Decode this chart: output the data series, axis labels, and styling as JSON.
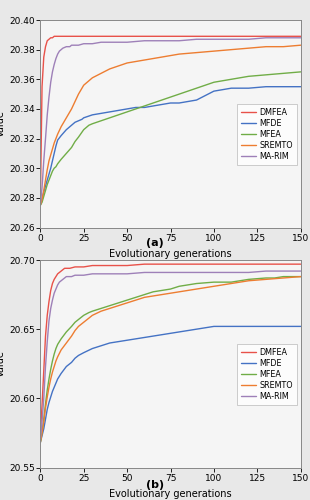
{
  "subplot_a": {
    "caption": "(a)",
    "xlabel": "Evolutionary generations",
    "ylabel": "Value",
    "xlim": [
      0,
      150
    ],
    "ylim": [
      20.26,
      20.4
    ],
    "yticks": [
      20.26,
      20.28,
      20.3,
      20.32,
      20.34,
      20.36,
      20.38,
      20.4
    ],
    "xticks": [
      0,
      25,
      50,
      75,
      100,
      125,
      150
    ],
    "curves": {
      "DMFEA": {
        "color": "#e8524a",
        "x": [
          0,
          1,
          2,
          3,
          4,
          5,
          6,
          7,
          8,
          9,
          10,
          11,
          12,
          13,
          14,
          15,
          20,
          25,
          30,
          40,
          50,
          60,
          70,
          80,
          90,
          100,
          110,
          120,
          130,
          140,
          150
        ],
        "y": [
          20.275,
          20.355,
          20.375,
          20.382,
          20.386,
          20.387,
          20.388,
          20.388,
          20.389,
          20.389,
          20.389,
          20.389,
          20.389,
          20.389,
          20.389,
          20.389,
          20.389,
          20.389,
          20.389,
          20.389,
          20.389,
          20.389,
          20.389,
          20.389,
          20.389,
          20.389,
          20.389,
          20.389,
          20.389,
          20.389,
          20.389
        ]
      },
      "MFDE": {
        "color": "#4472c4",
        "x": [
          0,
          1,
          2,
          3,
          4,
          5,
          6,
          7,
          8,
          9,
          10,
          12,
          15,
          18,
          20,
          22,
          24,
          25,
          30,
          35,
          40,
          45,
          50,
          55,
          60,
          65,
          70,
          75,
          80,
          90,
          100,
          105,
          110,
          120,
          130,
          140,
          150
        ],
        "y": [
          20.275,
          20.279,
          20.284,
          20.288,
          20.292,
          20.296,
          20.3,
          20.305,
          20.31,
          20.315,
          20.319,
          20.322,
          20.326,
          20.329,
          20.331,
          20.332,
          20.333,
          20.334,
          20.336,
          20.337,
          20.338,
          20.339,
          20.34,
          20.341,
          20.341,
          20.342,
          20.343,
          20.344,
          20.344,
          20.346,
          20.352,
          20.353,
          20.354,
          20.354,
          20.355,
          20.355,
          20.355
        ]
      },
      "MFEA": {
        "color": "#70ad47",
        "x": [
          0,
          1,
          2,
          3,
          4,
          5,
          6,
          7,
          8,
          9,
          10,
          12,
          15,
          18,
          20,
          22,
          25,
          28,
          30,
          35,
          40,
          45,
          50,
          55,
          60,
          65,
          70,
          75,
          80,
          90,
          100,
          110,
          120,
          130,
          140,
          150
        ],
        "y": [
          20.275,
          20.277,
          20.281,
          20.285,
          20.289,
          20.292,
          20.295,
          20.298,
          20.3,
          20.301,
          20.303,
          20.306,
          20.31,
          20.314,
          20.318,
          20.321,
          20.326,
          20.329,
          20.33,
          20.332,
          20.334,
          20.336,
          20.338,
          20.34,
          20.342,
          20.344,
          20.346,
          20.348,
          20.35,
          20.354,
          20.358,
          20.36,
          20.362,
          20.363,
          20.364,
          20.365
        ]
      },
      "SREMTO": {
        "color": "#ed7d31",
        "x": [
          0,
          1,
          2,
          3,
          4,
          5,
          6,
          7,
          8,
          9,
          10,
          12,
          15,
          18,
          20,
          22,
          25,
          28,
          30,
          35,
          40,
          45,
          50,
          55,
          60,
          65,
          70,
          75,
          80,
          90,
          100,
          110,
          120,
          130,
          140,
          150
        ],
        "y": [
          20.275,
          20.279,
          20.285,
          20.292,
          20.299,
          20.305,
          20.309,
          20.313,
          20.317,
          20.32,
          20.323,
          20.328,
          20.334,
          20.34,
          20.345,
          20.35,
          20.356,
          20.359,
          20.361,
          20.364,
          20.367,
          20.369,
          20.371,
          20.372,
          20.373,
          20.374,
          20.375,
          20.376,
          20.377,
          20.378,
          20.379,
          20.38,
          20.381,
          20.382,
          20.382,
          20.383
        ]
      },
      "MA-RIM": {
        "color": "#9e80b8",
        "x": [
          0,
          1,
          2,
          3,
          4,
          5,
          6,
          7,
          8,
          9,
          10,
          11,
          12,
          13,
          15,
          17,
          18,
          20,
          22,
          25,
          30,
          35,
          40,
          50,
          60,
          70,
          80,
          90,
          100,
          110,
          120,
          130,
          140,
          150
        ],
        "y": [
          20.275,
          20.287,
          20.305,
          20.32,
          20.336,
          20.348,
          20.358,
          20.365,
          20.37,
          20.374,
          20.377,
          20.379,
          20.38,
          20.381,
          20.382,
          20.382,
          20.383,
          20.383,
          20.383,
          20.384,
          20.384,
          20.385,
          20.385,
          20.385,
          20.386,
          20.386,
          20.386,
          20.387,
          20.387,
          20.387,
          20.387,
          20.388,
          20.388,
          20.388
        ]
      }
    }
  },
  "subplot_b": {
    "caption": "(b)",
    "xlabel": "Evolutionary generations",
    "ylabel": "Value",
    "xlim": [
      0,
      150
    ],
    "ylim": [
      20.55,
      20.7
    ],
    "yticks": [
      20.55,
      20.6,
      20.65,
      20.7
    ],
    "xticks": [
      0,
      25,
      50,
      75,
      100,
      125,
      150
    ],
    "curves": {
      "DMFEA": {
        "color": "#e8524a",
        "x": [
          0,
          1,
          2,
          3,
          4,
          5,
          6,
          7,
          8,
          9,
          10,
          11,
          12,
          13,
          14,
          15,
          17,
          20,
          25,
          30,
          40,
          50,
          60,
          70,
          80,
          90,
          100,
          110,
          120,
          130,
          140,
          150
        ],
        "y": [
          20.573,
          20.595,
          20.62,
          20.645,
          20.66,
          20.67,
          20.678,
          20.683,
          20.686,
          20.688,
          20.69,
          20.691,
          20.692,
          20.693,
          20.694,
          20.694,
          20.694,
          20.695,
          20.695,
          20.696,
          20.696,
          20.696,
          20.697,
          20.697,
          20.697,
          20.697,
          20.697,
          20.697,
          20.697,
          20.697,
          20.697,
          20.697
        ]
      },
      "MFDE": {
        "color": "#4472c4",
        "x": [
          0,
          1,
          2,
          3,
          4,
          5,
          6,
          7,
          8,
          9,
          10,
          12,
          15,
          18,
          20,
          22,
          25,
          30,
          35,
          40,
          45,
          50,
          55,
          60,
          65,
          70,
          75,
          80,
          90,
          95,
          100,
          110,
          120,
          130,
          140,
          150
        ],
        "y": [
          20.568,
          20.573,
          20.578,
          20.585,
          20.592,
          20.597,
          20.601,
          20.605,
          20.608,
          20.611,
          20.614,
          20.618,
          20.623,
          20.626,
          20.629,
          20.631,
          20.633,
          20.636,
          20.638,
          20.64,
          20.641,
          20.642,
          20.643,
          20.644,
          20.645,
          20.646,
          20.647,
          20.648,
          20.65,
          20.651,
          20.652,
          20.652,
          20.652,
          20.652,
          20.652,
          20.652
        ]
      },
      "MFEA": {
        "color": "#70ad47",
        "x": [
          0,
          1,
          2,
          3,
          4,
          5,
          6,
          7,
          8,
          9,
          10,
          12,
          15,
          18,
          20,
          22,
          25,
          28,
          30,
          35,
          40,
          45,
          50,
          55,
          60,
          65,
          70,
          75,
          80,
          90,
          100,
          110,
          120,
          130,
          135,
          140,
          150
        ],
        "y": [
          20.568,
          20.575,
          20.585,
          20.596,
          20.606,
          20.614,
          20.621,
          20.627,
          20.632,
          20.636,
          20.639,
          20.643,
          20.648,
          20.652,
          20.655,
          20.657,
          20.66,
          20.662,
          20.663,
          20.665,
          20.667,
          20.669,
          20.671,
          20.673,
          20.675,
          20.677,
          20.678,
          20.679,
          20.681,
          20.683,
          20.684,
          20.684,
          20.686,
          20.687,
          20.687,
          20.688,
          20.688
        ]
      },
      "SREMTO": {
        "color": "#ed7d31",
        "x": [
          0,
          1,
          2,
          3,
          4,
          5,
          6,
          7,
          8,
          9,
          10,
          12,
          15,
          18,
          20,
          22,
          25,
          28,
          30,
          35,
          40,
          45,
          50,
          55,
          60,
          65,
          70,
          75,
          80,
          90,
          100,
          110,
          120,
          130,
          140,
          150
        ],
        "y": [
          20.568,
          20.575,
          20.583,
          20.593,
          20.601,
          20.608,
          20.614,
          20.619,
          20.623,
          20.627,
          20.63,
          20.635,
          20.64,
          20.645,
          20.649,
          20.652,
          20.655,
          20.658,
          20.66,
          20.663,
          20.665,
          20.667,
          20.669,
          20.671,
          20.673,
          20.674,
          20.675,
          20.676,
          20.677,
          20.679,
          20.681,
          20.683,
          20.685,
          20.686,
          20.687,
          20.688
        ]
      },
      "MA-RIM": {
        "color": "#9e80b8",
        "x": [
          0,
          1,
          2,
          3,
          4,
          5,
          6,
          7,
          8,
          9,
          10,
          11,
          12,
          13,
          14,
          15,
          17,
          18,
          20,
          22,
          25,
          30,
          35,
          40,
          50,
          60,
          70,
          80,
          90,
          100,
          110,
          120,
          130,
          140,
          150
        ],
        "y": [
          20.57,
          20.583,
          20.6,
          20.623,
          20.641,
          20.656,
          20.665,
          20.671,
          20.676,
          20.679,
          20.682,
          20.684,
          20.685,
          20.686,
          20.687,
          20.688,
          20.688,
          20.688,
          20.689,
          20.689,
          20.689,
          20.69,
          20.69,
          20.69,
          20.69,
          20.691,
          20.691,
          20.691,
          20.691,
          20.691,
          20.691,
          20.691,
          20.692,
          20.692,
          20.692
        ]
      }
    }
  },
  "legend_order": [
    "DMFEA",
    "MFDE",
    "MFEA",
    "SREMTO",
    "MA-RIM"
  ],
  "background_color": "#e8e8e8",
  "axes_background": "#f5f5f5",
  "linewidth": 1.0
}
